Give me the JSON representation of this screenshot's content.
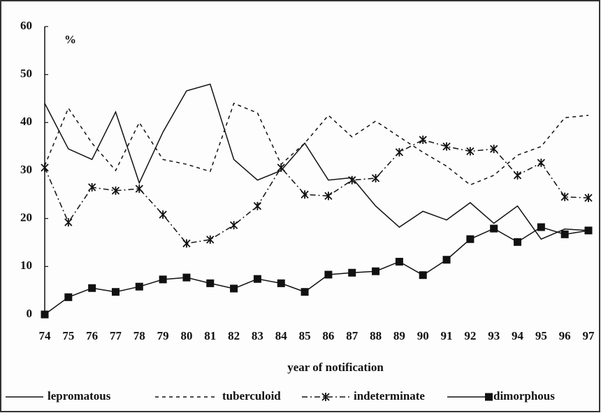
{
  "chart_data": {
    "type": "line",
    "y_label": "%",
    "x_label": "year of notification",
    "categories": [
      "74",
      "75",
      "76",
      "77",
      "78",
      "79",
      "80",
      "81",
      "82",
      "83",
      "84",
      "85",
      "86",
      "87",
      "88",
      "89",
      "90",
      "91",
      "92",
      "93",
      "94",
      "95",
      "96",
      "97"
    ],
    "ylim": [
      0,
      60
    ],
    "yticks": [
      0,
      10,
      20,
      30,
      40,
      50,
      60
    ],
    "legend": "bottom",
    "series": [
      {
        "name": "lepromatous",
        "color": "#111111",
        "values": [
          44,
          34.5,
          32.3,
          42.2,
          27.4,
          38,
          46.6,
          48,
          32.3,
          28,
          30,
          35.7,
          28,
          28.5,
          22.6,
          18.2,
          21.5,
          19.7,
          23.3,
          19,
          22.6,
          15.7,
          17.8,
          17.5
        ]
      },
      {
        "name": "tuberculoid",
        "color": "#111111",
        "values": [
          31,
          43,
          35.7,
          30,
          40,
          32.3,
          31.3,
          29.8,
          44,
          42,
          31.3,
          35.7,
          41.5,
          37,
          40.3,
          37,
          33.8,
          30.9,
          27,
          29,
          33.2,
          35,
          41,
          41.5
        ]
      },
      {
        "name": "indeterminate",
        "color": "#111111",
        "values": [
          30.6,
          19.2,
          26.5,
          25.8,
          26.2,
          20.8,
          14.8,
          15.6,
          18.6,
          22.6,
          30.6,
          25,
          24.7,
          28,
          28.4,
          33.8,
          36.4,
          35,
          34,
          34.5,
          29,
          31.6,
          24.5,
          24.3
        ]
      },
      {
        "name": "dimorphous",
        "color": "#111111",
        "values": [
          0,
          3.6,
          5.5,
          4.7,
          5.8,
          7.3,
          7.7,
          6.5,
          5.4,
          7.4,
          6.5,
          4.7,
          8.3,
          8.7,
          9,
          11,
          8.2,
          11.4,
          15.7,
          17.9,
          15.1,
          18.2,
          16.7,
          17.5
        ]
      }
    ]
  }
}
